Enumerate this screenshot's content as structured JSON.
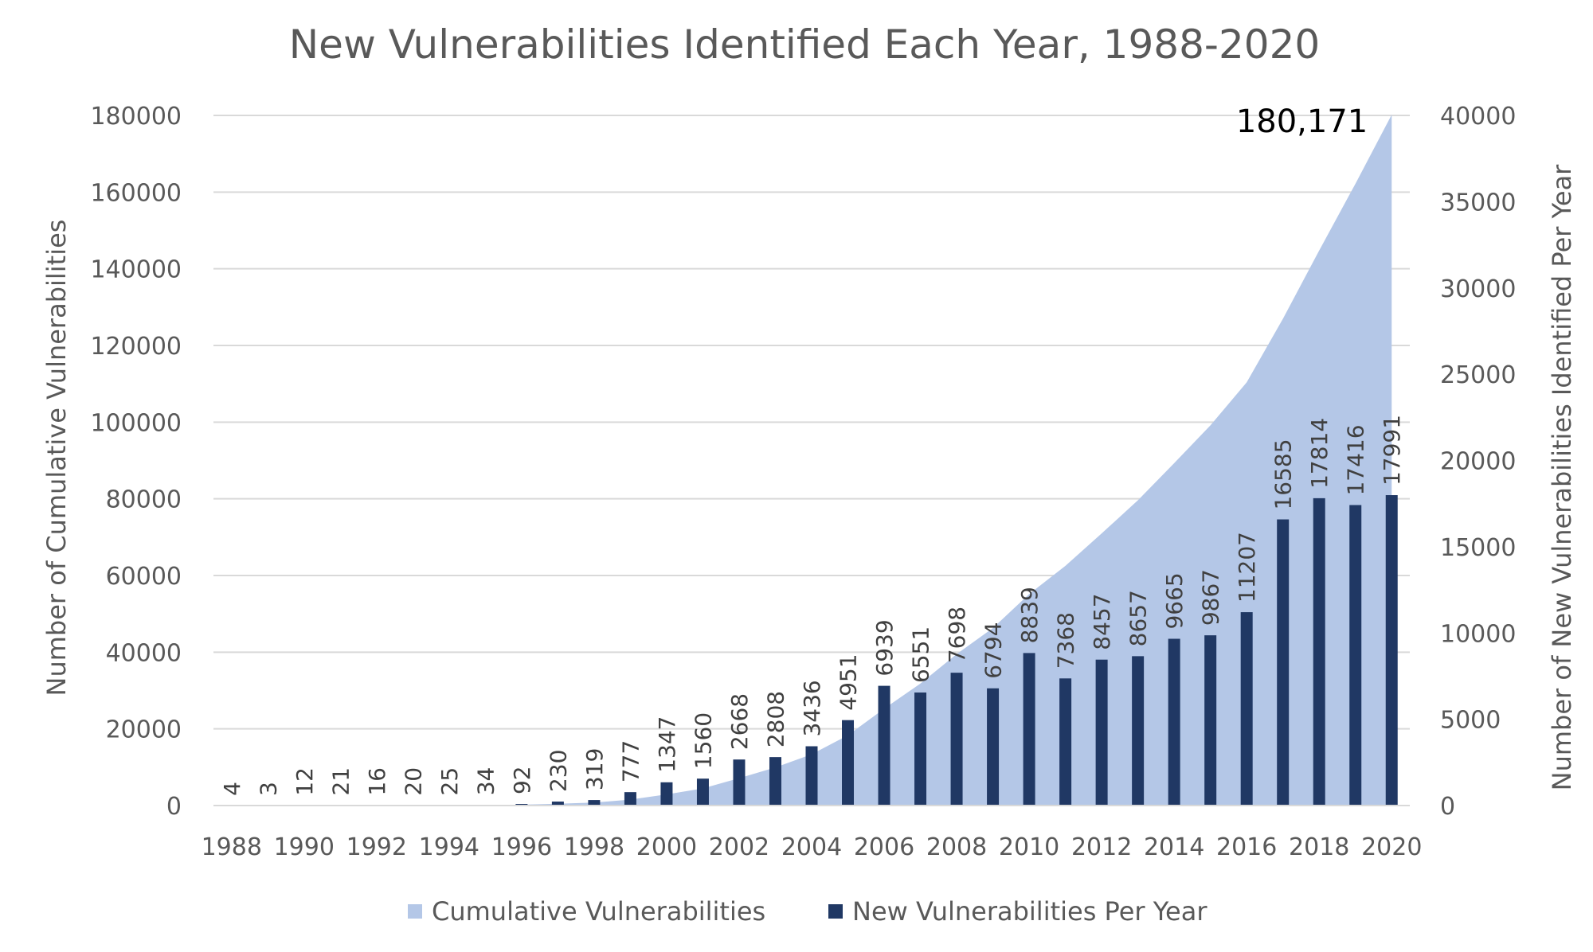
{
  "chart_data": {
    "type": "bar",
    "title": "New Vulnerabilities Identified Each Year, 1988-2020",
    "ylabel": "Number of Cumulative Vulnerabilities",
    "y2label": "Number of New Vulnerabilities Identified Per Year",
    "ylim": [
      0,
      180000
    ],
    "y2lim": [
      0,
      40000
    ],
    "yticks": [
      "0",
      "20000",
      "40000",
      "60000",
      "80000",
      "100000",
      "120000",
      "140000",
      "160000",
      "180000"
    ],
    "y2ticks": [
      "0",
      "5000",
      "10000",
      "15000",
      "20000",
      "25000",
      "30000",
      "35000",
      "40000"
    ],
    "xticks": [
      "1988",
      "1990",
      "1992",
      "1994",
      "1996",
      "1998",
      "2000",
      "2002",
      "2004",
      "2006",
      "2008",
      "2010",
      "2012",
      "2014",
      "2016",
      "2018",
      "2020"
    ],
    "grid": true,
    "legend_position": "bottom",
    "annotation": "180,171",
    "categories": [
      "1988",
      "1989",
      "1990",
      "1991",
      "1992",
      "1993",
      "1994",
      "1995",
      "1996",
      "1997",
      "1998",
      "1999",
      "2000",
      "2001",
      "2002",
      "2003",
      "2004",
      "2005",
      "2006",
      "2007",
      "2008",
      "2009",
      "2010",
      "2011",
      "2012",
      "2013",
      "2014",
      "2015",
      "2016",
      "2017",
      "2018",
      "2019",
      "2020"
    ],
    "series": [
      {
        "name": "Cumulative Vulnerabilities",
        "type": "area",
        "axis": "left",
        "color": "#b4c7e7",
        "values": [
          4,
          7,
          19,
          40,
          56,
          76,
          101,
          135,
          227,
          457,
          776,
          1553,
          2900,
          4460,
          7128,
          9936,
          13372,
          18323,
          25262,
          31813,
          39511,
          46305,
          55144,
          62512,
          70969,
          79626,
          89291,
          99158,
          110365,
          126950,
          144764,
          162180,
          180171
        ]
      },
      {
        "name": "New Vulnerabilities Per Year",
        "type": "bar",
        "axis": "right",
        "color": "#203864",
        "values": [
          4,
          3,
          12,
          21,
          16,
          20,
          25,
          34,
          92,
          230,
          319,
          777,
          1347,
          1560,
          2668,
          2808,
          3436,
          4951,
          6939,
          6551,
          7698,
          6794,
          8839,
          7368,
          8457,
          8657,
          9665,
          9867,
          11207,
          16585,
          17814,
          17416,
          17991
        ]
      }
    ]
  }
}
